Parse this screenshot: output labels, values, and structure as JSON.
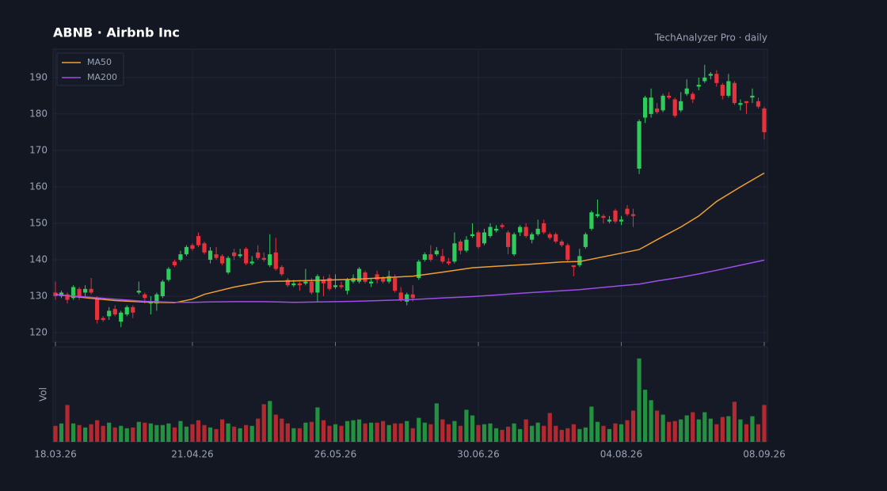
{
  "chart_data": {
    "type": "candlestick",
    "title": "ABNB  ·  Airbnb Inc",
    "subtitle": "TechAnalyzer Pro · daily",
    "volume_label": "Vol",
    "up_color": "#2ecc5a",
    "down_color": "#e5323c",
    "volume_up_color": "#23913f",
    "volume_down_color": "#b22a30",
    "grid": true,
    "legend": "upper left",
    "ylim": [
      117.4,
      197.8
    ],
    "yticks": [
      120,
      130,
      140,
      150,
      160,
      170,
      180,
      190
    ],
    "xticks": [
      "18.03.26",
      "21.04.26",
      "26.05.26",
      "30.06.26",
      "04.08.26",
      "08.09.26"
    ],
    "x": [
      "18.03.26",
      "19.03.26",
      "20.03.26",
      "23.03.26",
      "24.03.26",
      "25.03.26",
      "26.03.26",
      "27.03.26",
      "30.03.26",
      "31.03.26",
      "01.04.26",
      "02.04.26",
      "06.04.26",
      "07.04.26",
      "08.04.26",
      "09.04.26",
      "10.04.26",
      "13.04.26",
      "14.04.26",
      "15.04.26",
      "16.04.26",
      "17.04.26",
      "20.04.26",
      "21.04.26",
      "22.04.26",
      "23.04.26",
      "24.04.26",
      "27.04.26",
      "28.04.26",
      "29.04.26",
      "30.04.26",
      "01.05.26",
      "04.05.26",
      "05.05.26",
      "06.05.26",
      "07.05.26",
      "08.05.26",
      "11.05.26",
      "12.05.26",
      "13.05.26",
      "14.05.26",
      "15.05.26",
      "18.05.26",
      "19.05.26",
      "20.05.26",
      "21.05.26",
      "22.05.26",
      "26.05.26",
      "27.05.26",
      "28.05.26",
      "29.05.26",
      "01.06.26",
      "02.06.26",
      "03.06.26",
      "04.06.26",
      "05.06.26",
      "08.06.26",
      "09.06.26",
      "10.06.26",
      "11.06.26",
      "12.06.26",
      "15.06.26",
      "16.06.26",
      "17.06.26",
      "18.06.26",
      "22.06.26",
      "23.06.26",
      "24.06.26",
      "25.06.26",
      "26.06.26",
      "29.06.26",
      "30.06.26",
      "01.07.26",
      "02.07.26",
      "06.07.26",
      "07.07.26",
      "08.07.26",
      "09.07.26",
      "10.07.26",
      "13.07.26",
      "14.07.26",
      "15.07.26",
      "16.07.26",
      "17.07.26",
      "20.07.26",
      "21.07.26",
      "22.07.26",
      "23.07.26",
      "24.07.26",
      "27.07.26",
      "28.07.26",
      "29.07.26",
      "30.07.26",
      "31.07.26",
      "03.08.26",
      "04.08.26",
      "05.08.26",
      "06.08.26",
      "07.08.26",
      "10.08.26",
      "11.08.26",
      "12.08.26",
      "13.08.26",
      "14.08.26",
      "17.08.26",
      "18.08.26",
      "19.08.26",
      "20.08.26",
      "21.08.26",
      "24.08.26",
      "25.08.26",
      "26.08.26",
      "27.08.26",
      "28.08.26",
      "31.08.26",
      "01.09.26",
      "02.09.26",
      "03.09.26",
      "04.09.26",
      "08.09.26"
    ],
    "open": [
      131,
      130,
      130.5,
      129.5,
      132,
      131,
      132,
      129.5,
      124,
      124.5,
      126.5,
      123,
      125,
      127,
      131,
      130.5,
      128,
      128,
      130,
      134.5,
      139.5,
      140,
      141.5,
      144,
      146.5,
      144.5,
      140,
      141.5,
      141,
      136.5,
      142,
      141,
      143,
      139,
      142,
      140.5,
      138.5,
      142,
      138,
      134.5,
      133,
      133.5,
      133.5,
      134,
      131,
      134.5,
      135,
      132.5,
      133,
      131.5,
      134,
      134,
      136.5,
      133.5,
      136,
      135,
      134,
      135,
      131,
      128.5,
      130.5,
      135,
      140,
      141.5,
      141.5,
      141,
      139.5,
      139.5,
      145,
      142.5,
      146.5,
      147.5,
      144.5,
      146.5,
      148,
      149.5,
      147.5,
      141.5,
      147.5,
      149,
      145.5,
      147,
      150,
      147,
      147,
      145,
      144,
      138.5,
      138.5,
      143.5,
      148.5,
      152,
      152,
      150.5,
      153.5,
      150.5,
      154,
      152.5,
      165,
      179,
      180,
      181.5,
      181,
      185,
      184,
      181,
      185.5,
      185.5,
      187.5,
      189,
      190.5,
      191,
      188,
      185,
      188.5,
      182.5,
      183.5,
      184.5,
      183.5,
      181.5
    ],
    "high": [
      134,
      131.5,
      131,
      133,
      132.5,
      133,
      135,
      130,
      124.5,
      127,
      127.5,
      126,
      127.5,
      127.5,
      134,
      131,
      130,
      131,
      134.5,
      138,
      140,
      142.5,
      144,
      144.5,
      147.5,
      145,
      143.5,
      143.5,
      141.5,
      141,
      143,
      143,
      143.5,
      141,
      144,
      142,
      147,
      146,
      138.5,
      135,
      134.5,
      134,
      137.5,
      135,
      136,
      135.5,
      136,
      136,
      134,
      135,
      136,
      138,
      137,
      135,
      137,
      135.5,
      137,
      136,
      132.5,
      131,
      133,
      140,
      142,
      144,
      143.5,
      143,
      140.5,
      147.5,
      145.5,
      146.5,
      150,
      148,
      148.5,
      150,
      149.5,
      150,
      148,
      147.5,
      149.5,
      150,
      147.5,
      151,
      151,
      147.5,
      147.5,
      145.5,
      144.5,
      138.5,
      143,
      147.5,
      153.5,
      156.5,
      152.5,
      152,
      154,
      152,
      155,
      154,
      178.5,
      185,
      187,
      183,
      185.5,
      186,
      184.5,
      186,
      189.5,
      186,
      190,
      193.5,
      191.5,
      192,
      188.5,
      191,
      189,
      184,
      183.5,
      187,
      184.5,
      182
    ],
    "low": [
      129,
      129.5,
      128,
      129,
      129,
      130,
      130.5,
      122.5,
      123,
      123.5,
      124.5,
      121.5,
      124.5,
      124,
      130.5,
      128,
      125,
      126,
      129.5,
      134,
      138,
      139.5,
      141,
      142.5,
      143.5,
      141.5,
      139,
      140,
      138.5,
      136,
      140,
      140.5,
      138.5,
      138.5,
      140,
      139.5,
      138,
      137,
      135.5,
      132.5,
      132.5,
      131.5,
      133,
      130.5,
      128.5,
      130,
      131.5,
      132,
      132,
      130.5,
      133.5,
      133.5,
      133.5,
      132.5,
      133.5,
      133.5,
      133.5,
      131,
      128.5,
      127.5,
      128.5,
      134.5,
      139.5,
      139.5,
      141,
      139,
      138.5,
      139,
      141.5,
      142,
      146,
      143,
      144,
      146,
      147.5,
      148.5,
      141.5,
      141,
      146.5,
      146,
      144.5,
      146.5,
      147,
      145.5,
      144.5,
      143.5,
      139.5,
      135.5,
      138,
      143,
      148,
      151.5,
      150,
      150,
      150,
      149.5,
      152,
      149,
      163.5,
      177.5,
      179,
      180,
      180.5,
      184,
      179,
      180.5,
      185,
      183,
      186.5,
      188.5,
      189.5,
      187.5,
      184,
      184.5,
      182.5,
      181,
      180,
      183,
      181.5,
      173
    ],
    "close": [
      130,
      131,
      129,
      132.5,
      130,
      132,
      131,
      123.5,
      123.5,
      126,
      125,
      125.5,
      127,
      125.5,
      131.5,
      129.5,
      128.5,
      130.5,
      134,
      137.5,
      138.5,
      141.5,
      143.5,
      143,
      144,
      142,
      142.5,
      140.5,
      139,
      140.5,
      141,
      141.5,
      139,
      139.5,
      140.5,
      140,
      141.5,
      137.5,
      136,
      133,
      133.5,
      133,
      134,
      131,
      135.5,
      133.5,
      132,
      133,
      132.5,
      134.5,
      135,
      137.5,
      134,
      134,
      134.5,
      134,
      135.5,
      131.5,
      129,
      130.5,
      129.5,
      139.5,
      141.5,
      140,
      142.5,
      139.5,
      139,
      144.5,
      142.5,
      145.5,
      147,
      143.5,
      147.5,
      149,
      148.5,
      149,
      143.5,
      147,
      149,
      146.5,
      147,
      148.5,
      147.5,
      146,
      145,
      144,
      140,
      138,
      141,
      147,
      153,
      152.5,
      151.5,
      151,
      150.5,
      151,
      152.5,
      152,
      178,
      184.5,
      184.5,
      180.5,
      185,
      184.5,
      179.5,
      183.5,
      187,
      184,
      188,
      190,
      191,
      188.5,
      185,
      189,
      183,
      183,
      183,
      185,
      182,
      175
    ],
    "volume": [
      20,
      23,
      46,
      23,
      21,
      18,
      22,
      27,
      20,
      24,
      18,
      20,
      17,
      18,
      25,
      24,
      23,
      21,
      21,
      23,
      18,
      26,
      19,
      22,
      27,
      21,
      18,
      16,
      28,
      23,
      19,
      17,
      21,
      20,
      29,
      47,
      51,
      34,
      29,
      23,
      17,
      17,
      24,
      25,
      43,
      27,
      20,
      22,
      20,
      26,
      27,
      28,
      23,
      24,
      24,
      26,
      21,
      23,
      23,
      26,
      17,
      30,
      24,
      22,
      48,
      28,
      22,
      26,
      20,
      40,
      33,
      21,
      22,
      23,
      17,
      15,
      19,
      23,
      16,
      28,
      20,
      24,
      20,
      36,
      20,
      15,
      17,
      22,
      16,
      18,
      44,
      25,
      20,
      16,
      23,
      22,
      27,
      39,
      104,
      65,
      52,
      39,
      34,
      25,
      26,
      28,
      33,
      37,
      28,
      37,
      29,
      22,
      31,
      32,
      50,
      28,
      22,
      32,
      22,
      46
    ],
    "series": [
      {
        "name": "MA50",
        "color": "#f0a030",
        "x": [
          "18.03.26",
          "25.03.26",
          "01.04.26",
          "09.04.26",
          "16.04.26",
          "21.04.26",
          "23.04.26",
          "30.04.26",
          "07.05.26",
          "14.05.26",
          "29.05.26",
          "12.06.26",
          "22.06.26",
          "29.06.26",
          "14.07.26",
          "21.07.26",
          "24.07.26",
          "04.08.26",
          "07.08.26",
          "12.08.26",
          "18.08.26",
          "21.08.26",
          "26.08.26",
          "01.09.26",
          "08.09.26"
        ],
        "values": [
          130.5,
          129.6,
          128.8,
          128.4,
          128.2,
          129.2,
          130.5,
          132.5,
          134,
          134.2,
          134.6,
          135.5,
          136.6,
          137.8,
          138.8,
          139.4,
          139.5,
          141.8,
          142.8,
          145.5,
          149,
          152,
          156,
          160,
          163.8
        ]
      },
      {
        "name": "MA200",
        "color": "#9d4ee8",
        "x": [
          "18.03.26",
          "25.03.26",
          "01.04.26",
          "09.04.26",
          "16.04.26",
          "21.04.26",
          "23.04.26",
          "30.04.26",
          "07.05.26",
          "14.05.26",
          "29.05.26",
          "12.06.26",
          "22.06.26",
          "29.06.26",
          "14.07.26",
          "21.07.26",
          "24.07.26",
          "04.08.26",
          "07.08.26",
          "12.08.26",
          "18.08.26",
          "21.08.26",
          "26.08.26",
          "01.09.26",
          "08.09.26"
        ],
        "values": [
          130.4,
          129.8,
          129.2,
          128.6,
          128.3,
          128.3,
          128.4,
          128.5,
          128.5,
          128.3,
          128.6,
          129.1,
          129.5,
          129.9,
          131,
          131.5,
          131.8,
          132.9,
          133.3,
          134.2,
          135.2,
          136.1,
          137.1,
          138.5,
          139.9
        ]
      }
    ]
  }
}
